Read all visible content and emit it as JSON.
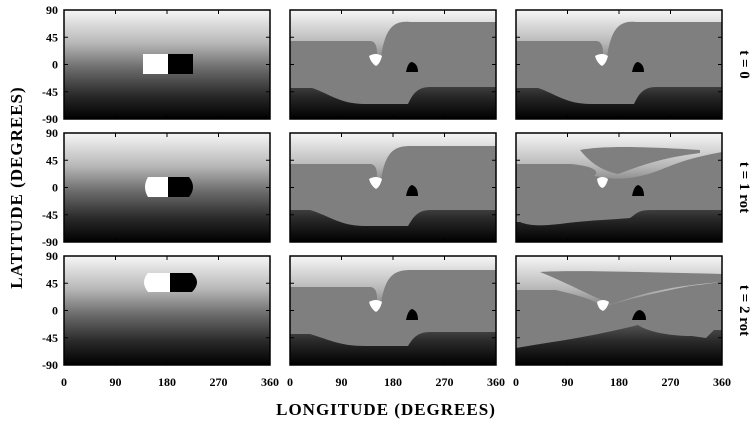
{
  "chart_data": {
    "type": "heatmap",
    "xlabel": "LONGITUDE   (DEGREES)",
    "ylabel": "LATITUDE   (DEGREES)",
    "xlim": [
      0,
      360
    ],
    "ylim": [
      -90,
      90
    ],
    "xticks": [
      "0",
      "90",
      "180",
      "270",
      "360"
    ],
    "yticks": [
      "90",
      "45",
      "0",
      "-45",
      "-90"
    ],
    "grid": false,
    "colormap": "grayscale (light at north, dark at south; mid-gray flux regions)",
    "rows": [
      "t = 0",
      "t = 1 rot",
      "t = 2 rot"
    ],
    "columns": 3,
    "panel_background_gradient": [
      "#f6f6f6",
      "#b8b8b8",
      "#707070",
      "#2a2a2a",
      "#000000"
    ],
    "flux_gray": "#7f7f7f",
    "panels": [
      {
        "row": 0,
        "col": 0,
        "content": "initial bipole",
        "white_patch_lon": [
          140,
          172
        ],
        "black_patch_lon": [
          174,
          204
        ],
        "lat": [
          -13,
          13
        ]
      },
      {
        "row": 0,
        "col": 1,
        "content": "sheared gray band with white spot near lon 150 and black spot near lon 220"
      },
      {
        "row": 0,
        "col": 2,
        "content": "sheared gray band with white spot near lon 150 and black spot near lon 220"
      },
      {
        "row": 1,
        "col": 0,
        "content": "bipole with rounded ends",
        "white_patch_lon": [
          138,
          172
        ],
        "black_patch_lon": [
          174,
          210
        ],
        "lat": [
          -13,
          13
        ]
      },
      {
        "row": 1,
        "col": 1,
        "content": "sheared gray band"
      },
      {
        "row": 1,
        "col": 2,
        "content": "sheared gray band with northern tongue"
      },
      {
        "row": 2,
        "col": 0,
        "content": "bipole with rounded ends",
        "white_patch_lon": [
          132,
          172
        ],
        "black_patch_lon": [
          174,
          220
        ],
        "lat": [
          -13,
          13
        ]
      },
      {
        "row": 2,
        "col": 1,
        "content": "sheared gray band"
      },
      {
        "row": 2,
        "col": 2,
        "content": "strongly sheared gray tongue"
      }
    ]
  }
}
